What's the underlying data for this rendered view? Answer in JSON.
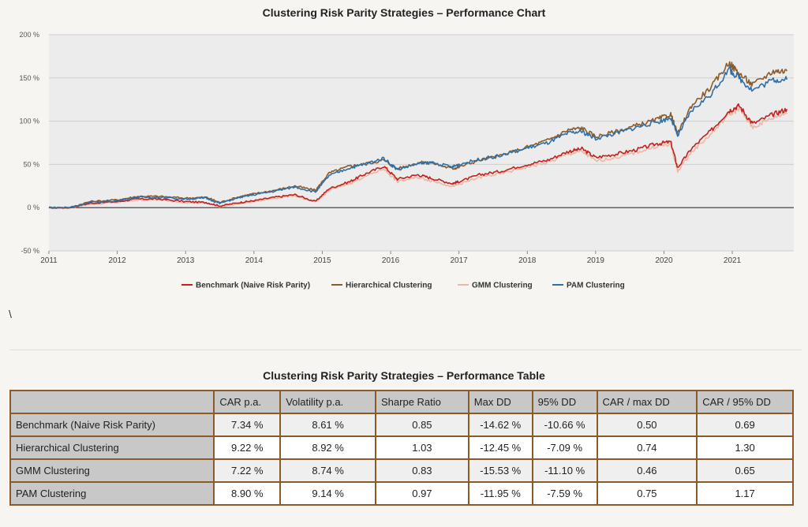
{
  "chart_title": "Clustering Risk Parity Strategies – Performance Chart",
  "table_title": "Clustering Risk Parity Strategies – Performance Table",
  "stray_text": "\\",
  "chart_data": {
    "type": "line",
    "title": "Clustering Risk Parity Strategies – Performance Chart",
    "xlabel": "",
    "ylabel": "",
    "xlim": [
      2011,
      2021.9
    ],
    "ylim": [
      -50,
      200
    ],
    "x_ticks": [
      "2011",
      "2012",
      "2013",
      "2014",
      "2015",
      "2016",
      "2017",
      "2018",
      "2019",
      "2020",
      "2021"
    ],
    "y_ticks": [
      "-50 %",
      "0 %",
      "50 %",
      "100 %",
      "150 %",
      "200 %"
    ],
    "grid": true,
    "legend_position": "bottom-center",
    "x": [
      2011.0,
      2011.3,
      2011.6,
      2012.0,
      2012.3,
      2012.6,
      2013.0,
      2013.3,
      2013.5,
      2013.8,
      2014.0,
      2014.3,
      2014.6,
      2014.9,
      2015.1,
      2015.4,
      2015.6,
      2015.9,
      2016.1,
      2016.4,
      2016.6,
      2016.9,
      2017.0,
      2017.3,
      2017.6,
      2018.0,
      2018.3,
      2018.6,
      2018.8,
      2019.0,
      2019.3,
      2019.6,
      2019.9,
      2020.1,
      2020.2,
      2020.4,
      2020.7,
      2020.95,
      2021.1,
      2021.3,
      2021.6,
      2021.8
    ],
    "series": [
      {
        "name": "Benchmark (Naive Risk Parity)",
        "color": "#c62020",
        "values": [
          0,
          0,
          5,
          7,
          10,
          10,
          7,
          6,
          2,
          6,
          8,
          12,
          15,
          7,
          22,
          30,
          38,
          48,
          33,
          38,
          34,
          28,
          30,
          38,
          42,
          50,
          55,
          65,
          68,
          58,
          62,
          67,
          74,
          76,
          46,
          68,
          90,
          112,
          118,
          97,
          108,
          114
        ]
      },
      {
        "name": "Hierarchical Clustering",
        "color": "#8b5a2b",
        "values": [
          0,
          0,
          7,
          9,
          13,
          13,
          11,
          12,
          6,
          13,
          16,
          20,
          25,
          20,
          40,
          48,
          50,
          55,
          45,
          52,
          52,
          45,
          47,
          55,
          60,
          70,
          78,
          90,
          92,
          82,
          88,
          95,
          102,
          108,
          85,
          118,
          140,
          168,
          155,
          142,
          158,
          158
        ]
      },
      {
        "name": "GMM Clustering",
        "color": "#e8b9a4",
        "values": [
          0,
          0,
          4,
          6,
          9,
          9,
          6,
          5,
          1,
          5,
          7,
          11,
          14,
          6,
          20,
          28,
          35,
          45,
          30,
          35,
          31,
          25,
          27,
          35,
          39,
          47,
          52,
          62,
          65,
          54,
          58,
          64,
          71,
          73,
          42,
          64,
          86,
          108,
          114,
          93,
          104,
          110
        ]
      },
      {
        "name": "PAM Clustering",
        "color": "#2e6fa8",
        "values": [
          0,
          0,
          6,
          8,
          12,
          12,
          10,
          11,
          5,
          12,
          15,
          19,
          24,
          18,
          37,
          46,
          50,
          57,
          44,
          51,
          52,
          47,
          50,
          56,
          60,
          69,
          75,
          86,
          88,
          80,
          86,
          93,
          99,
          104,
          83,
          112,
          132,
          160,
          150,
          136,
          148,
          148
        ]
      }
    ]
  },
  "table": {
    "headers": [
      "",
      "CAR p.a.",
      "Volatility p.a.",
      "Sharpe Ratio",
      "Max DD",
      "95% DD",
      "CAR / max DD",
      "CAR / 95% DD"
    ],
    "rows": [
      {
        "name": "Benchmark (Naive Risk Parity)",
        "cells": [
          "7.34 %",
          "8.61 %",
          "0.85",
          "-14.62 %",
          "-10.66 %",
          "0.50",
          "0.69"
        ]
      },
      {
        "name": "Hierarchical Clustering",
        "cells": [
          "9.22 %",
          "8.92 %",
          "1.03",
          "-12.45 %",
          "-7.09 %",
          "0.74",
          "1.30"
        ]
      },
      {
        "name": "GMM Clustering",
        "cells": [
          "7.22 %",
          "8.74 %",
          "0.83",
          "-15.53 %",
          "-11.10 %",
          "0.46",
          "0.65"
        ]
      },
      {
        "name": "PAM Clustering",
        "cells": [
          "8.90 %",
          "9.14 %",
          "0.97",
          "-11.95 %",
          "-7.59 %",
          "0.75",
          "1.17"
        ]
      }
    ]
  }
}
